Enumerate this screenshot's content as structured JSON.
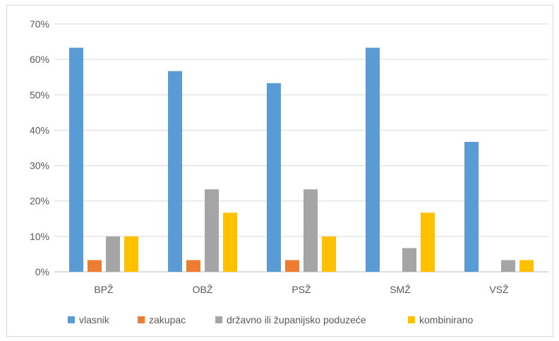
{
  "chart_data": {
    "type": "bar",
    "title": "",
    "xlabel": "",
    "ylabel": "",
    "categories": [
      "BPŽ",
      "OBŽ",
      "PSŽ",
      "SMŽ",
      "VSŽ"
    ],
    "series": [
      {
        "name": "vlasnik",
        "color": "#5b9bd5",
        "values": [
          63.3,
          56.7,
          53.3,
          63.3,
          36.7
        ]
      },
      {
        "name": "zakupac",
        "color": "#ed7d31",
        "values": [
          3.3,
          3.3,
          3.3,
          0,
          0
        ]
      },
      {
        "name": "državno ili županijsko poduzeće",
        "color": "#a5a5a5",
        "values": [
          10,
          23.3,
          23.3,
          6.7,
          3.3
        ]
      },
      {
        "name": "kombinirano",
        "color": "#ffc000",
        "values": [
          10,
          16.7,
          10,
          16.7,
          3.3
        ]
      }
    ],
    "ylim": [
      0,
      70
    ],
    "yticks": [
      0,
      10,
      20,
      30,
      40,
      50,
      60,
      70
    ],
    "ytick_labels": [
      "0%",
      "10%",
      "20%",
      "30%",
      "40%",
      "50%",
      "60%",
      "70%"
    ],
    "grid": true,
    "legend_position": "bottom"
  }
}
